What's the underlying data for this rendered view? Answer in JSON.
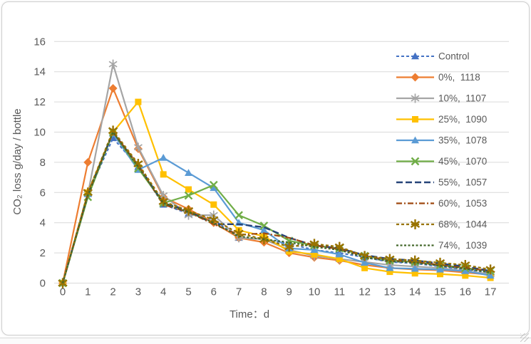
{
  "window": {
    "background": "#FFFFFF",
    "card_border_color": "#CFCFCF"
  },
  "chart_data": {
    "type": "line",
    "title": "",
    "xlabel": "Time：d",
    "ylabel": "CO₂ loss g/day / bottle",
    "x": [
      0,
      1,
      2,
      3,
      4,
      5,
      6,
      7,
      8,
      9,
      10,
      11,
      12,
      13,
      14,
      15,
      16,
      17
    ],
    "y_ticks": [
      0,
      2,
      4,
      6,
      8,
      10,
      12,
      14,
      16
    ],
    "ylim": [
      0,
      16
    ],
    "grid": true,
    "grid_color": "#D9D9D9",
    "axis_text_color": "#595959",
    "legend_position": "right-inside",
    "series": [
      {
        "name": "Control",
        "color": "#4472C4",
        "dash": "4 3",
        "marker": "triangle",
        "width": 2,
        "values": [
          0,
          5.9,
          9.6,
          7.7,
          5.2,
          4.6,
          4.2,
          3.0,
          2.9,
          2.6,
          2.2,
          2.0,
          1.7,
          1.4,
          1.3,
          1.1,
          0.9,
          0.7
        ]
      },
      {
        "name": "0%,  1118",
        "color": "#ED7D31",
        "dash": "",
        "marker": "diamond",
        "width": 2.2,
        "values": [
          0,
          8.0,
          12.9,
          8.9,
          5.7,
          4.9,
          4.0,
          3.0,
          2.7,
          2.0,
          1.7,
          1.5,
          1.2,
          1.0,
          0.9,
          0.85,
          0.7,
          0.55
        ]
      },
      {
        "name": "10%,  1107",
        "color": "#A5A5A5",
        "dash": "",
        "marker": "asterisk",
        "width": 2.2,
        "values": [
          0,
          5.9,
          14.5,
          9.0,
          5.8,
          4.5,
          4.5,
          3.0,
          2.9,
          2.2,
          1.8,
          1.6,
          1.4,
          1.2,
          1.1,
          1.0,
          0.8,
          0.6
        ]
      },
      {
        "name": "25%,  1090",
        "color": "#FFC000",
        "dash": "",
        "marker": "square",
        "width": 2.2,
        "values": [
          0,
          6.0,
          10.0,
          12.0,
          7.2,
          6.2,
          5.2,
          3.5,
          3.1,
          2.1,
          1.9,
          1.6,
          1.0,
          0.75,
          0.65,
          0.6,
          0.5,
          0.35
        ]
      },
      {
        "name": "35%,  1078",
        "color": "#5B9BD5",
        "dash": "",
        "marker": "triangle",
        "width": 2.2,
        "values": [
          0,
          5.9,
          9.9,
          7.5,
          8.3,
          7.3,
          6.3,
          4.0,
          3.5,
          2.3,
          2.2,
          1.9,
          1.35,
          1.0,
          0.95,
          0.9,
          0.8,
          0.5
        ]
      },
      {
        "name": "45%,  1070",
        "color": "#70AD47",
        "dash": "",
        "marker": "x",
        "width": 2.2,
        "values": [
          0,
          5.7,
          10.0,
          7.6,
          5.3,
          5.8,
          6.5,
          4.5,
          3.8,
          2.8,
          2.5,
          2.3,
          1.8,
          1.5,
          1.4,
          1.2,
          1.0,
          0.8
        ]
      },
      {
        "name": "55%,  1057",
        "color": "#264478",
        "dash": "9 4",
        "marker": "none",
        "width": 2.4,
        "values": [
          0,
          5.9,
          10.0,
          7.8,
          5.3,
          4.8,
          3.9,
          3.9,
          3.7,
          3.0,
          2.5,
          2.3,
          1.85,
          1.6,
          1.5,
          1.3,
          1.1,
          0.8
        ]
      },
      {
        "name": "60%,  1053",
        "color": "#9E480E",
        "dash": "8 3 2 3",
        "marker": "none",
        "width": 2.2,
        "values": [
          0,
          5.9,
          10.0,
          7.8,
          5.2,
          4.7,
          3.9,
          3.2,
          3.3,
          3.0,
          2.5,
          2.25,
          1.8,
          1.5,
          1.4,
          1.2,
          1.0,
          0.8
        ]
      },
      {
        "name": "68%,  1044",
        "color": "#997300",
        "dash": "4 3",
        "marker": "star",
        "width": 2.2,
        "values": [
          0,
          6.0,
          10.1,
          7.9,
          5.4,
          4.8,
          4.2,
          3.3,
          2.9,
          2.4,
          2.6,
          2.4,
          1.8,
          1.6,
          1.5,
          1.35,
          1.2,
          0.9
        ]
      },
      {
        "name": "74%,  1039",
        "color": "#43682B",
        "dash": "3 2.5",
        "marker": "none",
        "width": 2.2,
        "values": [
          0,
          5.8,
          10.0,
          7.7,
          5.3,
          4.7,
          4.0,
          3.1,
          2.9,
          2.7,
          2.4,
          2.2,
          1.7,
          1.45,
          1.35,
          1.15,
          0.95,
          0.7
        ]
      }
    ]
  }
}
